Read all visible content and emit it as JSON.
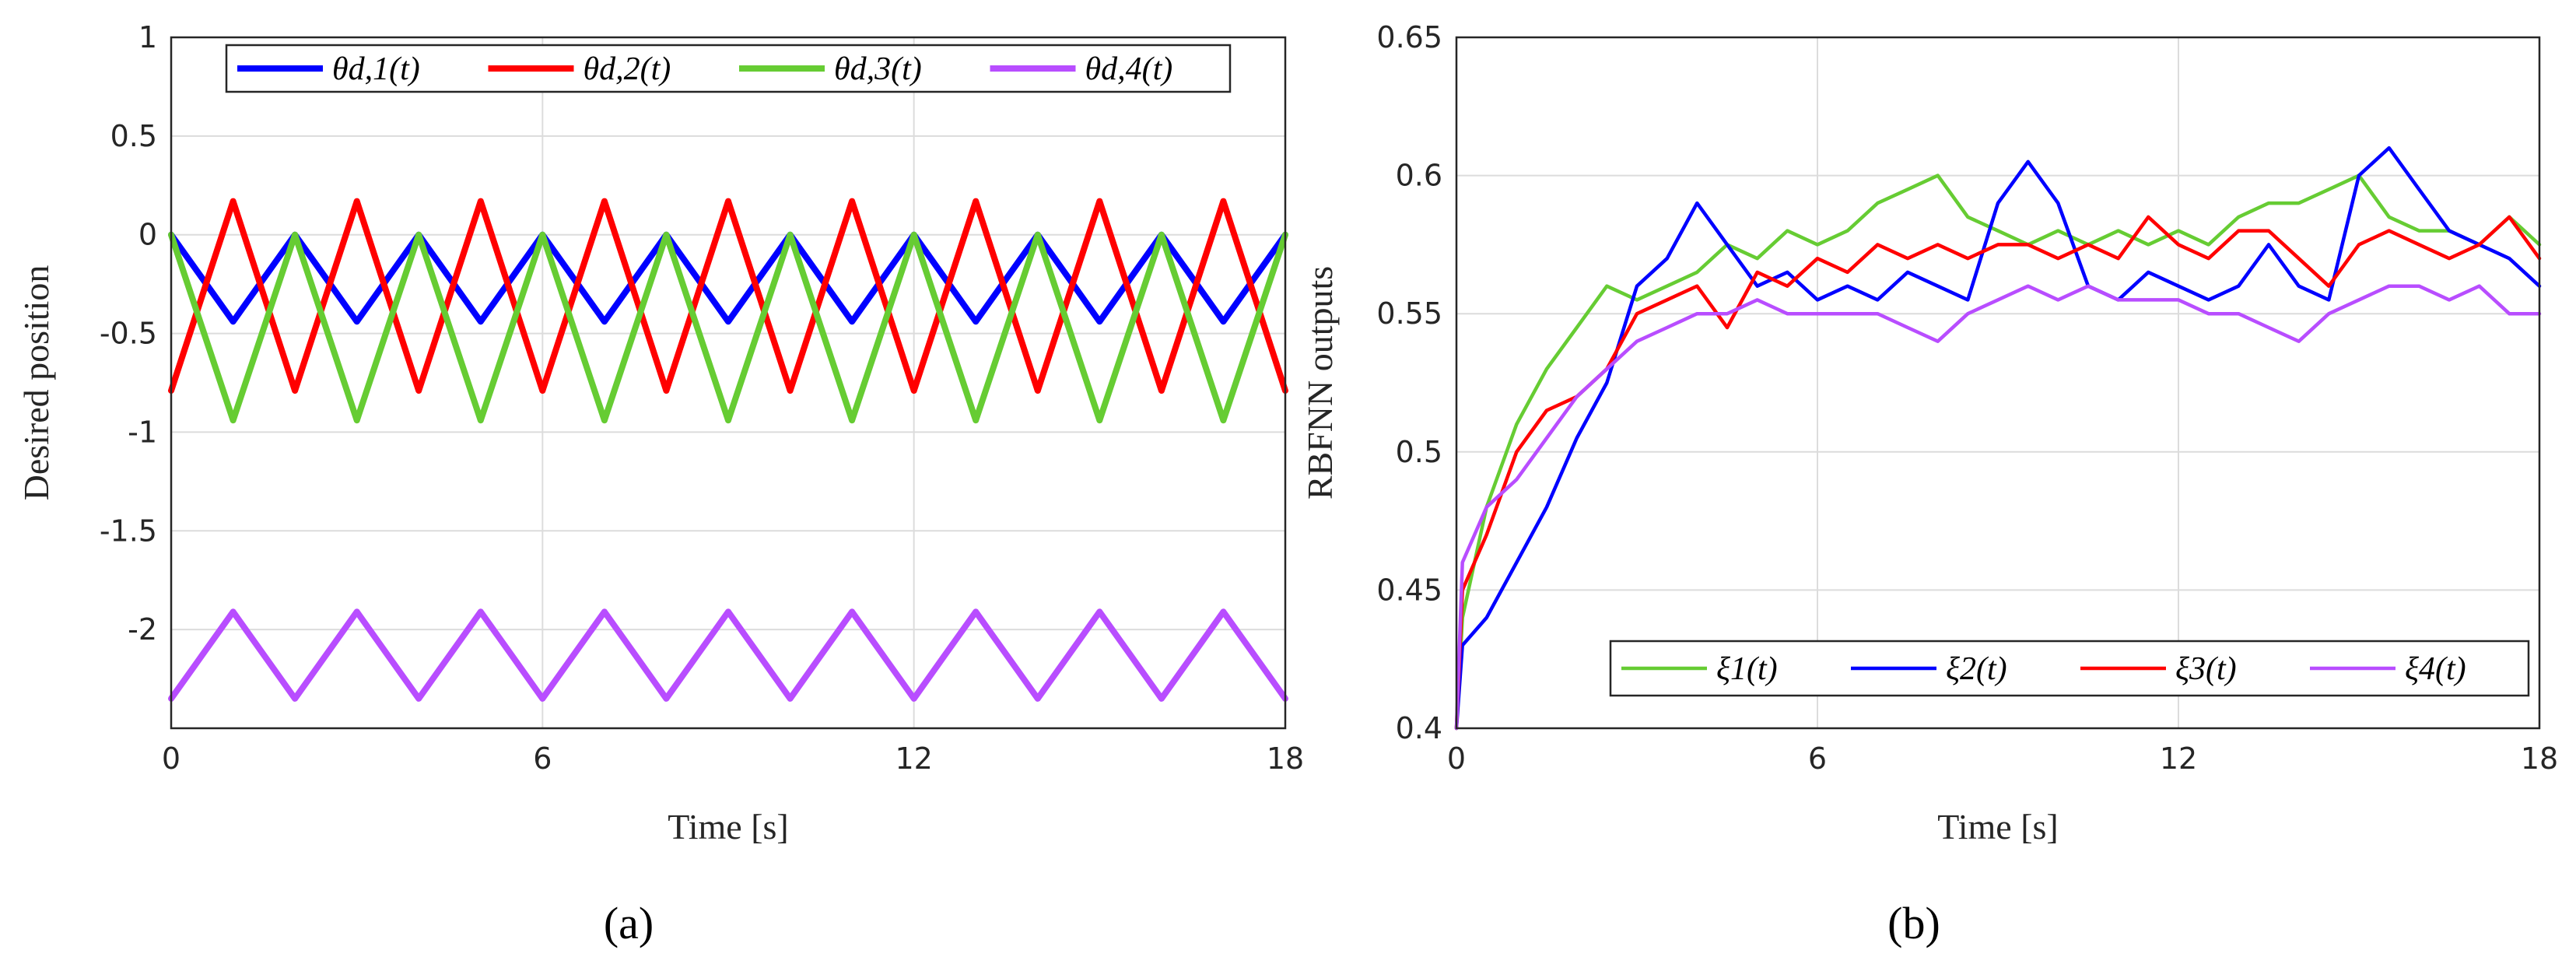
{
  "chart_data": [
    {
      "type": "line",
      "panel_label": "(a)",
      "xlabel": "Time [s]",
      "ylabel": "Desired position",
      "xlim": [
        0,
        18
      ],
      "ylim": [
        -2.5,
        1
      ],
      "xticks": [
        0,
        6,
        12,
        18
      ],
      "xtick_labels": [
        "0",
        "6",
        "12",
        "18"
      ],
      "yticks": [
        1,
        0.5,
        0,
        -0.5,
        -1,
        -1.5,
        -2
      ],
      "ytick_labels": [
        "1",
        "0.5",
        "0",
        "-0.5",
        "-1",
        "-1.5",
        "-2"
      ],
      "grid": true,
      "legend_position": "top",
      "x": [
        0,
        0.5,
        1,
        1.5,
        2,
        2.5,
        3,
        3.5,
        4,
        4.5,
        5,
        5.5,
        6,
        6.5,
        7,
        7.5,
        8,
        8.5,
        9,
        9.5,
        10,
        10.5,
        11,
        11.5,
        12,
        12.5,
        13,
        13.5,
        14,
        14.5,
        15,
        15.5,
        16,
        16.5,
        17,
        17.5,
        18
      ],
      "series": [
        {
          "name": "θd,1(t)",
          "color": "#0000ff",
          "values": [
            0,
            -0.22,
            -0.44,
            -0.22,
            0,
            -0.22,
            -0.44,
            -0.22,
            0,
            -0.22,
            -0.44,
            -0.22,
            0,
            -0.22,
            -0.44,
            -0.22,
            0,
            -0.22,
            -0.44,
            -0.22,
            0,
            -0.22,
            -0.44,
            -0.22,
            0,
            -0.22,
            -0.44,
            -0.22,
            0,
            -0.22,
            -0.44,
            -0.22,
            0,
            -0.22,
            -0.44,
            -0.22,
            0
          ]
        },
        {
          "name": "θd,2(t)",
          "color": "#ff0000",
          "values": [
            -0.79,
            -0.31,
            0.17,
            -0.31,
            -0.79,
            -0.31,
            0.17,
            -0.31,
            -0.79,
            -0.31,
            0.17,
            -0.31,
            -0.79,
            -0.31,
            0.17,
            -0.31,
            -0.79,
            -0.31,
            0.17,
            -0.31,
            -0.79,
            -0.31,
            0.17,
            -0.31,
            -0.79,
            -0.31,
            0.17,
            -0.31,
            -0.79,
            -0.31,
            0.17,
            -0.31,
            -0.79,
            -0.31,
            0.17,
            -0.31,
            -0.79
          ]
        },
        {
          "name": "θd,3(t)",
          "color": "#66cc33",
          "values": [
            0,
            -0.47,
            -0.94,
            -0.47,
            0,
            -0.47,
            -0.94,
            -0.47,
            0,
            -0.47,
            -0.94,
            -0.47,
            0,
            -0.47,
            -0.94,
            -0.47,
            0,
            -0.47,
            -0.94,
            -0.47,
            0,
            -0.47,
            -0.94,
            -0.47,
            0,
            -0.47,
            -0.94,
            -0.47,
            0,
            -0.47,
            -0.94,
            -0.47,
            0,
            -0.47,
            -0.94,
            -0.47,
            0
          ]
        },
        {
          "name": "θd,4(t)",
          "color": "#b84dff",
          "values": [
            -2.35,
            -2.13,
            -1.91,
            -2.13,
            -2.35,
            -2.13,
            -1.91,
            -2.13,
            -2.35,
            -2.13,
            -1.91,
            -2.13,
            -2.35,
            -2.13,
            -1.91,
            -2.13,
            -2.35,
            -2.13,
            -1.91,
            -2.13,
            -2.35,
            -2.13,
            -1.91,
            -2.13,
            -2.35,
            -2.13,
            -1.91,
            -2.13,
            -2.35,
            -2.13,
            -1.91,
            -2.13,
            -2.35,
            -2.13,
            -1.91,
            -2.13,
            -2.35
          ]
        }
      ]
    },
    {
      "type": "line",
      "panel_label": "(b)",
      "xlabel": "Time [s]",
      "ylabel": "RBFNN outputs",
      "xlim": [
        0,
        18
      ],
      "ylim": [
        0.4,
        0.65
      ],
      "xticks": [
        0,
        6,
        12,
        18
      ],
      "xtick_labels": [
        "0",
        "6",
        "12",
        "18"
      ],
      "yticks": [
        0.65,
        0.6,
        0.55,
        0.5,
        0.45,
        0.4
      ],
      "ytick_labels": [
        "0.65",
        "0.6",
        "0.55",
        "0.5",
        "0.45",
        "0.4"
      ],
      "grid": true,
      "legend_position": "bottom",
      "x": [
        0,
        0.1,
        0.5,
        1,
        1.5,
        2,
        2.5,
        3,
        3.5,
        4,
        4.5,
        5,
        5.5,
        6,
        6.5,
        7,
        7.5,
        8,
        8.5,
        9,
        9.5,
        10,
        10.5,
        11,
        11.5,
        12,
        12.5,
        13,
        13.5,
        14,
        14.5,
        15,
        15.5,
        16,
        16.5,
        17,
        17.5,
        18
      ],
      "series": [
        {
          "name": "ξ1(t)",
          "color": "#66cc33",
          "values": [
            0.4,
            0.44,
            0.48,
            0.51,
            0.53,
            0.545,
            0.56,
            0.555,
            0.56,
            0.565,
            0.575,
            0.57,
            0.58,
            0.575,
            0.58,
            0.59,
            0.595,
            0.6,
            0.585,
            0.58,
            0.575,
            0.58,
            0.575,
            0.58,
            0.575,
            0.58,
            0.575,
            0.585,
            0.59,
            0.59,
            0.595,
            0.6,
            0.585,
            0.58,
            0.58,
            0.575,
            0.585,
            0.575
          ]
        },
        {
          "name": "ξ2(t)",
          "color": "#0000ff",
          "values": [
            0.4,
            0.43,
            0.44,
            0.46,
            0.48,
            0.505,
            0.525,
            0.56,
            0.57,
            0.59,
            0.575,
            0.56,
            0.565,
            0.555,
            0.56,
            0.555,
            0.565,
            0.56,
            0.555,
            0.59,
            0.605,
            0.59,
            0.56,
            0.555,
            0.565,
            0.56,
            0.555,
            0.56,
            0.575,
            0.56,
            0.555,
            0.6,
            0.61,
            0.595,
            0.58,
            0.575,
            0.57,
            0.56
          ]
        },
        {
          "name": "ξ3(t)",
          "color": "#ff0000",
          "values": [
            0.4,
            0.45,
            0.47,
            0.5,
            0.515,
            0.52,
            0.53,
            0.55,
            0.555,
            0.56,
            0.545,
            0.565,
            0.56,
            0.57,
            0.565,
            0.575,
            0.57,
            0.575,
            0.57,
            0.575,
            0.575,
            0.57,
            0.575,
            0.57,
            0.585,
            0.575,
            0.57,
            0.58,
            0.58,
            0.57,
            0.56,
            0.575,
            0.58,
            0.575,
            0.57,
            0.575,
            0.585,
            0.57
          ]
        },
        {
          "name": "ξ4(t)",
          "color": "#b84dff",
          "values": [
            0.4,
            0.46,
            0.48,
            0.49,
            0.505,
            0.52,
            0.53,
            0.54,
            0.545,
            0.55,
            0.55,
            0.555,
            0.55,
            0.55,
            0.55,
            0.55,
            0.545,
            0.54,
            0.55,
            0.555,
            0.56,
            0.555,
            0.56,
            0.555,
            0.555,
            0.555,
            0.55,
            0.55,
            0.545,
            0.54,
            0.55,
            0.555,
            0.56,
            0.56,
            0.555,
            0.56,
            0.55,
            0.55
          ]
        }
      ]
    }
  ]
}
